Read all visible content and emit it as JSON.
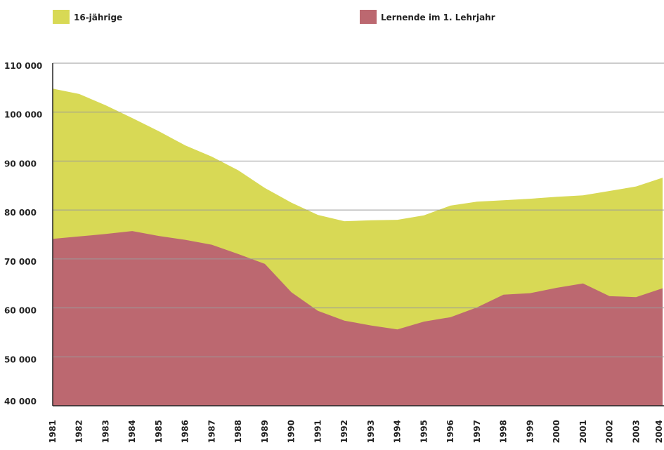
{
  "chart_data": {
    "type": "area",
    "categories": [
      "1981",
      "1982",
      "1983",
      "1984",
      "1985",
      "1986",
      "1987",
      "1988",
      "1989",
      "1990",
      "1991",
      "1992",
      "1993",
      "1994",
      "1995",
      "1996",
      "1997",
      "1998",
      "1999",
      "2000",
      "2001",
      "2002",
      "2003",
      "2004"
    ],
    "series": [
      {
        "name": "16-jährige",
        "color": "#d8d955",
        "values": [
          104800,
          103700,
          101400,
          98800,
          96100,
          93200,
          90900,
          88100,
          84500,
          81500,
          79000,
          77700,
          77900,
          78000,
          78900,
          80900,
          81700,
          82000,
          82300,
          82700,
          83000,
          83900,
          84800,
          86600
        ]
      },
      {
        "name": "Lernende im 1. Lehrjahr",
        "color": "#bc6870",
        "values": [
          74100,
          74600,
          75100,
          75700,
          74700,
          73900,
          72900,
          71000,
          69000,
          63200,
          59400,
          57400,
          56400,
          55600,
          57200,
          58100,
          60100,
          62700,
          63000,
          64100,
          65000,
          62400,
          62200,
          64000
        ]
      }
    ],
    "ylim": [
      40000,
      110000
    ],
    "yticks": [
      {
        "value": 40000,
        "label": "40 000"
      },
      {
        "value": 50000,
        "label": "50 000"
      },
      {
        "value": 60000,
        "label": "60 000"
      },
      {
        "value": 70000,
        "label": "70 000"
      },
      {
        "value": 80000,
        "label": "80 000"
      },
      {
        "value": 90000,
        "label": "90 000"
      },
      {
        "value": 100000,
        "label": "100 000"
      },
      {
        "value": 110000,
        "label": "110 000"
      }
    ],
    "grid": true
  }
}
